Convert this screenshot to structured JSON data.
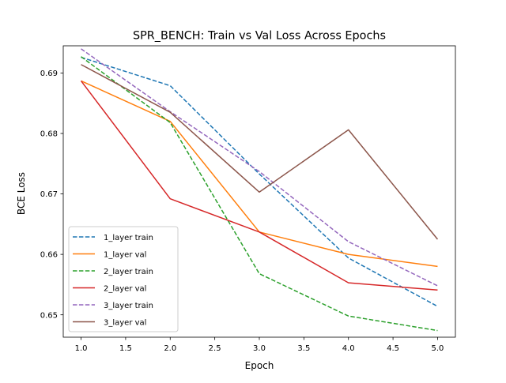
{
  "chart_data": {
    "type": "line",
    "title": "SPR_BENCH: Train vs Val Loss Across Epochs",
    "xlabel": "Epoch",
    "ylabel": "BCE Loss",
    "xlim": [
      0.8,
      5.2
    ],
    "ylim": [
      0.6463,
      0.6945
    ],
    "x_ticks": [
      1.0,
      1.5,
      2.0,
      2.5,
      3.0,
      3.5,
      4.0,
      4.5,
      5.0
    ],
    "x_tick_labels": [
      "1.0",
      "1.5",
      "2.0",
      "2.5",
      "3.0",
      "3.5",
      "4.0",
      "4.5",
      "5.0"
    ],
    "y_ticks": [
      0.65,
      0.66,
      0.67,
      0.68,
      0.69
    ],
    "y_tick_labels": [
      "0.65",
      "0.66",
      "0.67",
      "0.68",
      "0.69"
    ],
    "grid": false,
    "legend_position": "lower-left",
    "x": [
      1,
      2,
      3,
      4,
      5
    ],
    "series": [
      {
        "name": "1_layer train",
        "color": "#1f77b4",
        "dashed": true,
        "values": [
          0.6926,
          0.6879,
          0.6733,
          0.6594,
          0.6514
        ]
      },
      {
        "name": "1_layer val",
        "color": "#ff7f0e",
        "dashed": false,
        "values": [
          0.6887,
          0.682,
          0.6637,
          0.66,
          0.658
        ]
      },
      {
        "name": "2_layer train",
        "color": "#2ca02c",
        "dashed": true,
        "values": [
          0.6927,
          0.6818,
          0.6568,
          0.6498,
          0.6474
        ]
      },
      {
        "name": "2_layer val",
        "color": "#d62728",
        "dashed": false,
        "values": [
          0.6887,
          0.6692,
          0.6637,
          0.6553,
          0.6541
        ]
      },
      {
        "name": "3_layer train",
        "color": "#9467bd",
        "dashed": true,
        "values": [
          0.694,
          0.6836,
          0.6737,
          0.6621,
          0.6548
        ]
      },
      {
        "name": "3_layer val",
        "color": "#8c564b",
        "dashed": false,
        "values": [
          0.6914,
          0.6835,
          0.6703,
          0.6806,
          0.6625
        ]
      }
    ]
  }
}
